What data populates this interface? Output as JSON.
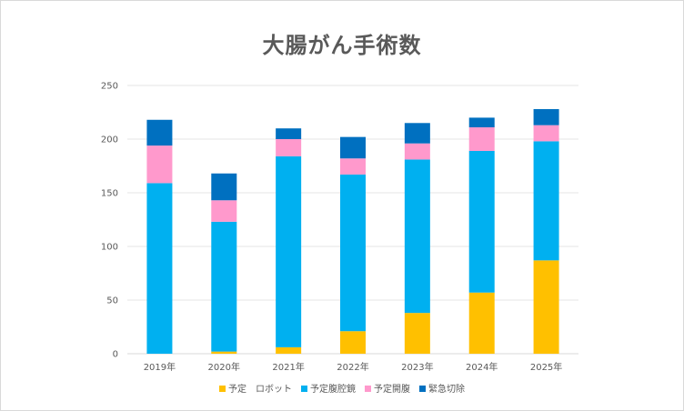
{
  "chart_data": {
    "type": "bar",
    "stacked": true,
    "title": "大腸がん手術数",
    "xlabel": "",
    "ylabel": "",
    "ylim": [
      0,
      250
    ],
    "yticks": [
      0,
      50,
      100,
      150,
      200,
      250
    ],
    "grid": true,
    "legend_position": "bottom",
    "categories": [
      "2019年",
      "2020年",
      "2021年",
      "2022年",
      "2023年",
      "2024年",
      "2025年"
    ],
    "series": [
      {
        "name": "予定　ロボット",
        "color": "#FFC000",
        "values": [
          0,
          2,
          6,
          21,
          38,
          57,
          87
        ]
      },
      {
        "name": "予定腹腔鏡",
        "color": "#00B0F0",
        "values": [
          159,
          121,
          178,
          146,
          143,
          132,
          111
        ]
      },
      {
        "name": "予定開腹",
        "color": "#FF99CC",
        "values": [
          35,
          20,
          16,
          15,
          15,
          22,
          15
        ]
      },
      {
        "name": "緊急切除",
        "color": "#0070C0",
        "values": [
          24,
          25,
          10,
          20,
          19,
          9,
          15
        ]
      }
    ]
  }
}
